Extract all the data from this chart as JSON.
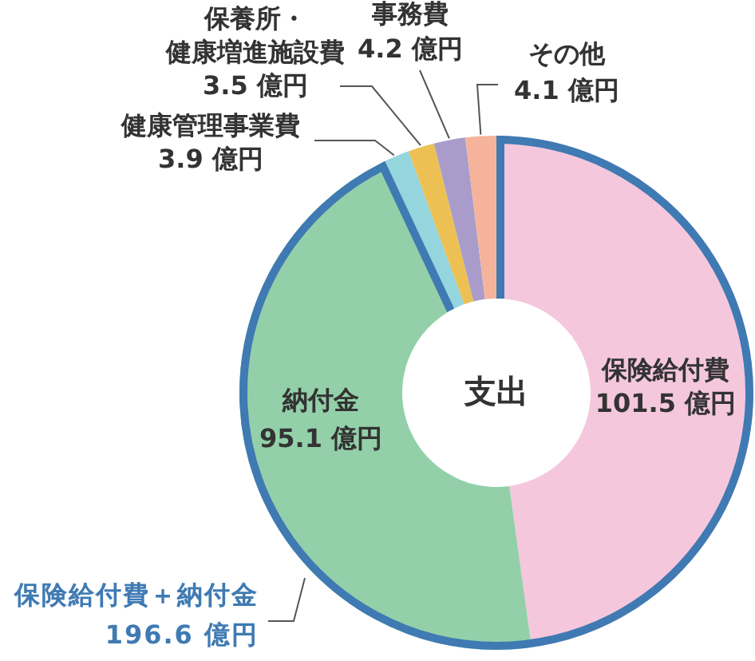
{
  "chart_data": {
    "type": "donut",
    "title": "支出",
    "categories": [
      "保険給付費",
      "納付金",
      "健康管理事業費",
      "保養所・健康増進施設費",
      "事務費",
      "その他"
    ],
    "values": [
      101.5,
      95.1,
      3.9,
      3.5,
      4.2,
      4.1
    ],
    "value_labels": [
      "101.5 億円",
      "95.1 億円",
      "3.9 億円",
      "3.5 億円",
      "4.2 億円",
      "4.1 億円"
    ],
    "colors": [
      "#f5c7dd",
      "#93d0a9",
      "#95d5de",
      "#ecc052",
      "#a99ccb",
      "#f6b39b"
    ],
    "annotations": [
      "保険給付費＋納付金 196.6 億円"
    ]
  }
}
